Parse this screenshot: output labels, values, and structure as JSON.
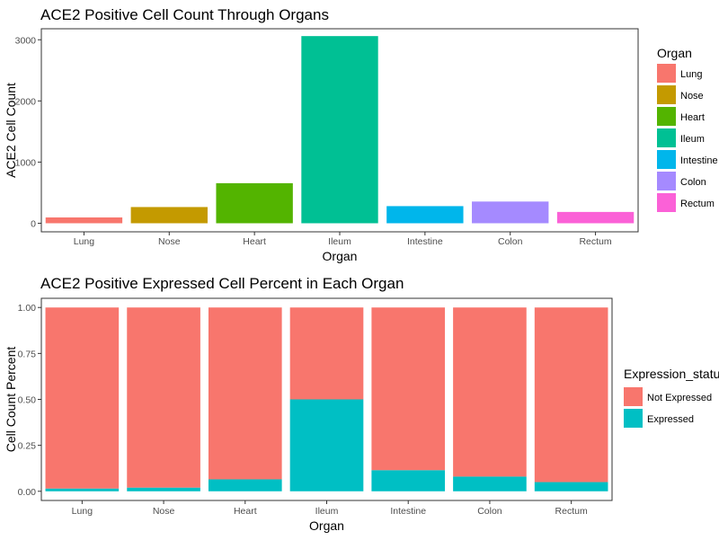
{
  "chart_data": [
    {
      "type": "bar",
      "title": "ACE2 Positive Cell Count Through Organs",
      "xlabel": "Organ",
      "ylabel": "ACE2 Cell Count",
      "categories": [
        "Lung",
        "Nose",
        "Heart",
        "Ileum",
        "Intestine",
        "Colon",
        "Rectum"
      ],
      "values": [
        95,
        265,
        655,
        3060,
        280,
        355,
        185
      ],
      "colors": [
        "#F8766D",
        "#C49A00",
        "#53B400",
        "#00C094",
        "#00B6EB",
        "#A58AFF",
        "#FB61D7"
      ],
      "ylim": [
        -140,
        3180
      ],
      "yticks": [
        0,
        1000,
        2000,
        3000
      ],
      "grid": false,
      "legend": {
        "title": "Organ",
        "position": "right"
      }
    },
    {
      "type": "bar",
      "stacked": true,
      "title": "ACE2 Positive Expressed Cell Percent in Each Organ",
      "xlabel": "Organ",
      "ylabel": "Cell Count Percent",
      "categories": [
        "Lung",
        "Nose",
        "Heart",
        "Ileum",
        "Intestine",
        "Colon",
        "Rectum"
      ],
      "series": [
        {
          "name": "Not Expressed",
          "color": "#F8766D",
          "values": [
            0.985,
            0.98,
            0.935,
            0.5,
            0.885,
            0.92,
            0.95
          ]
        },
        {
          "name": "Expressed",
          "color": "#00BFC4",
          "values": [
            0.015,
            0.02,
            0.065,
            0.5,
            0.115,
            0.08,
            0.05
          ]
        }
      ],
      "ylim": [
        -0.05,
        1.05
      ],
      "yticks": [
        "0.00",
        "0.25",
        "0.50",
        "0.75",
        "1.00"
      ],
      "grid": false,
      "legend": {
        "title": "Expression_status",
        "position": "right"
      }
    }
  ]
}
